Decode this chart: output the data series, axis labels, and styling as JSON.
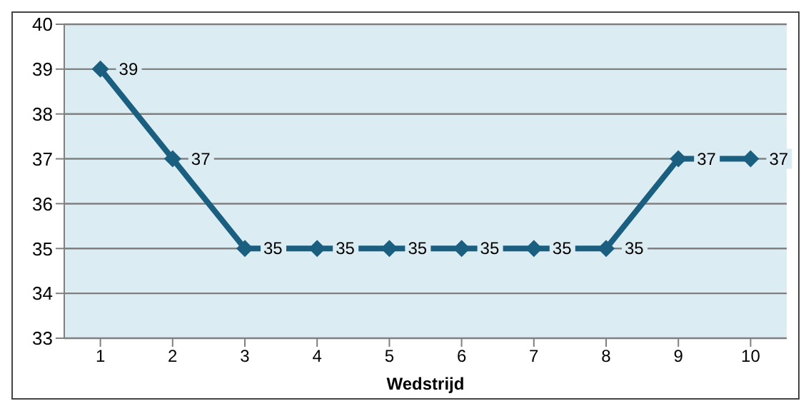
{
  "chart_data": {
    "type": "line",
    "xlabel": "Wedstrijd",
    "categories": [
      "1",
      "2",
      "3",
      "4",
      "5",
      "6",
      "7",
      "8",
      "9",
      "10"
    ],
    "series": [
      {
        "color": "#1a5e80",
        "values": [
          39,
          37,
          35,
          35,
          35,
          35,
          35,
          35,
          37,
          37
        ]
      }
    ],
    "ylim": [
      33,
      40
    ],
    "yticks": [
      33,
      34,
      35,
      36,
      37,
      38,
      39,
      40
    ],
    "grid": "y",
    "marker": "diamond",
    "line_style": "solid",
    "data_labels": true
  }
}
